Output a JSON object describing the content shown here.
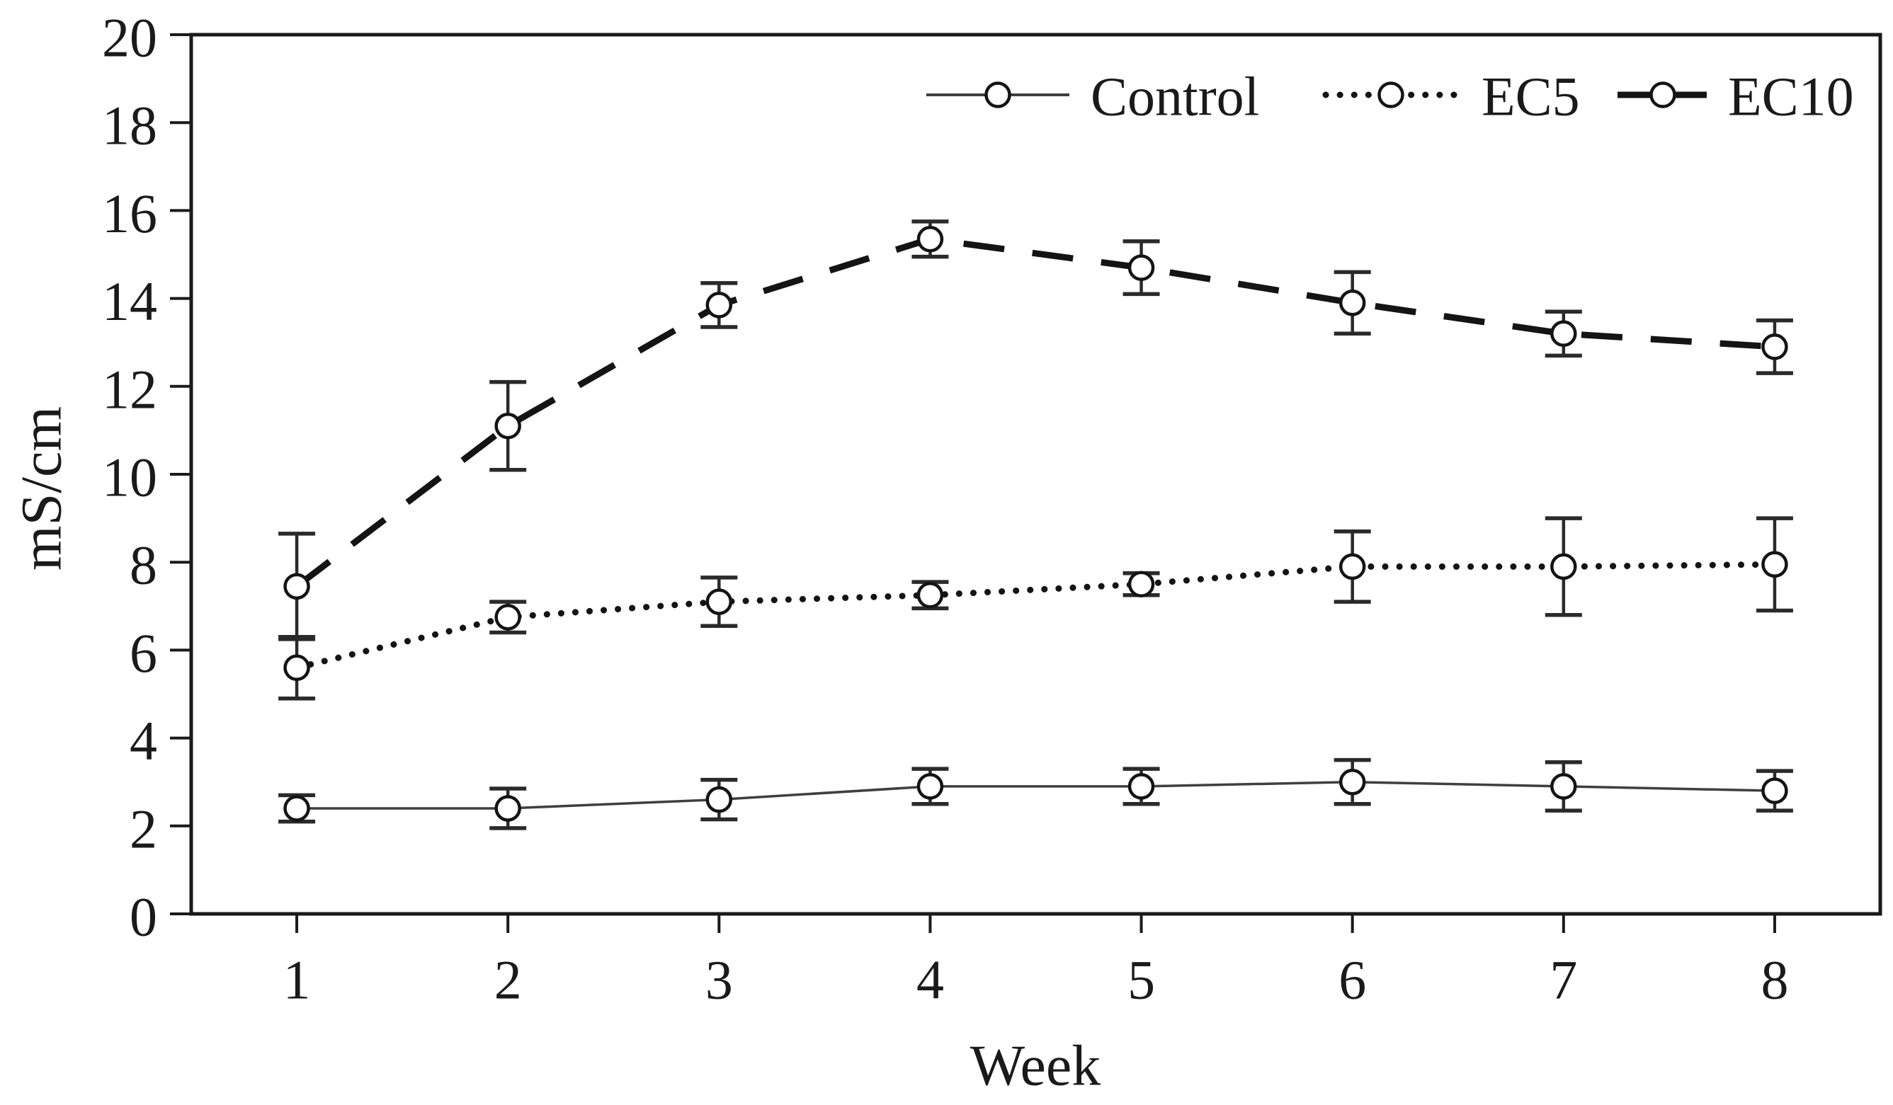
{
  "colors": {
    "background": "#ffffff",
    "axis": "#1a1a1a",
    "text": "#1a1a1a",
    "control_line": "#3f3f3f",
    "series_dark": "#141414",
    "marker_fill": "#ffffff"
  },
  "chart_data": {
    "type": "line",
    "title": "",
    "xlabel": "Week",
    "ylabel": "mS/cm",
    "x": [
      1,
      2,
      3,
      4,
      5,
      6,
      7,
      8
    ],
    "xlim": [
      0.5,
      8.5
    ],
    "ylim": [
      0,
      20
    ],
    "y_ticks": [
      0,
      2,
      4,
      6,
      8,
      10,
      12,
      14,
      16,
      18,
      20
    ],
    "grid": false,
    "legend_position": "top-right-inside",
    "error_bars": true,
    "marker": "open-circle",
    "series": [
      {
        "name": "Control",
        "line_style": "solid",
        "color": "#3f3f3f",
        "values": [
          2.4,
          2.4,
          2.6,
          2.9,
          2.9,
          3.0,
          2.9,
          2.8
        ],
        "errors": [
          0.3,
          0.45,
          0.45,
          0.4,
          0.4,
          0.5,
          0.55,
          0.45
        ]
      },
      {
        "name": "EC5",
        "line_style": "dotted",
        "color": "#141414",
        "values": [
          5.6,
          6.75,
          7.1,
          7.25,
          7.5,
          7.9,
          7.9,
          7.95
        ],
        "errors": [
          0.7,
          0.35,
          0.55,
          0.3,
          0.25,
          0.8,
          1.1,
          1.05
        ]
      },
      {
        "name": "EC10",
        "line_style": "dashed",
        "color": "#141414",
        "values": [
          7.45,
          11.1,
          13.85,
          15.35,
          14.7,
          13.9,
          13.2,
          12.9
        ],
        "errors": [
          1.2,
          1.0,
          0.5,
          0.4,
          0.6,
          0.7,
          0.5,
          0.6
        ]
      }
    ]
  }
}
